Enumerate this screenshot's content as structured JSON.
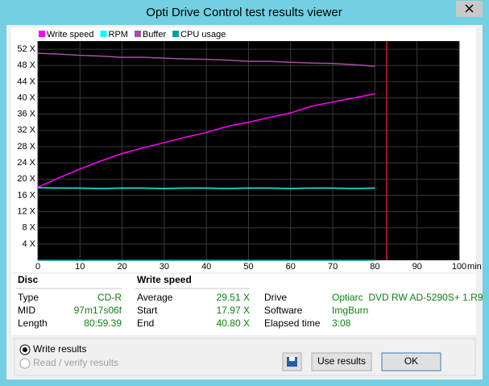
{
  "window": {
    "title": "Opti Drive Control test results viewer"
  },
  "chart_data": {
    "type": "line",
    "x": [
      0,
      5,
      10,
      15,
      20,
      25,
      30,
      35,
      40,
      45,
      50,
      55,
      60,
      65,
      70,
      75,
      80
    ],
    "series": [
      {
        "name": "Write speed",
        "color": "#ff00ff",
        "values": [
          18,
          20.3,
          22.5,
          24.5,
          26.3,
          27.7,
          29,
          30.3,
          31.5,
          33,
          34,
          35.2,
          36.3,
          38,
          39,
          40,
          41
        ]
      },
      {
        "name": "RPM",
        "color": "#00ffff",
        "values": [
          17.9,
          17.8,
          17.8,
          17.7,
          17.8,
          17.8,
          17.7,
          17.8,
          17.8,
          17.7,
          17.8,
          17.8,
          17.7,
          17.8,
          17.8,
          17.7,
          17.8
        ]
      },
      {
        "name": "Buffer",
        "color": "#a550a5",
        "values": [
          51,
          50.8,
          50.5,
          50.3,
          50,
          50,
          49.8,
          49.6,
          49.5,
          49.3,
          49,
          49,
          48.8,
          48.6,
          48.5,
          48.2,
          47.8
        ]
      },
      {
        "name": "CPU usage",
        "color": "#00a0a0",
        "values": [
          0,
          0,
          0,
          0,
          0,
          0,
          0,
          0,
          0,
          0,
          0,
          0,
          0,
          0,
          0,
          0,
          0
        ]
      }
    ],
    "xlim": [
      0,
      100
    ],
    "xticks": [
      0,
      10,
      20,
      30,
      40,
      50,
      60,
      70,
      80,
      90,
      100
    ],
    "xlabel": "min",
    "ylim": [
      0,
      54
    ],
    "yticks": [
      {
        "value": 4,
        "label": "4 X"
      },
      {
        "value": 8,
        "label": "8 X"
      },
      {
        "value": 12,
        "label": "12 X"
      },
      {
        "value": 16,
        "label": "16 X"
      },
      {
        "value": 20,
        "label": "20 X"
      },
      {
        "value": 24,
        "label": "24 X"
      },
      {
        "value": 28,
        "label": "28 X"
      },
      {
        "value": 32,
        "label": "32 X"
      },
      {
        "value": 36,
        "label": "36 X"
      },
      {
        "value": 40,
        "label": "40 X"
      },
      {
        "value": 44,
        "label": "44 X"
      },
      {
        "value": 48,
        "label": "48 X"
      },
      {
        "value": 52,
        "label": "52 X"
      }
    ],
    "grid": true,
    "end_line": 82.8,
    "end_line_color": "#d02020"
  },
  "disc": {
    "title": "Disc",
    "rows": [
      [
        "Type",
        "CD-R"
      ],
      [
        "MID",
        "97m17s06f"
      ],
      [
        "Length",
        "80:59.39"
      ]
    ]
  },
  "write_speed": {
    "title": "Write speed",
    "rows": [
      [
        "Average",
        "29.51 X"
      ],
      [
        "Start",
        "17.97 X"
      ],
      [
        "End",
        "40.80 X"
      ]
    ]
  },
  "drive_info": {
    "rows": [
      [
        "Drive",
        "Optiarc  DVD RW AD-5290S+ 1.R9"
      ],
      [
        "Software",
        "ImgBurn"
      ],
      [
        "Elapsed time",
        "3:08"
      ]
    ]
  },
  "options": {
    "radios": [
      {
        "label": "Write results",
        "checked": true,
        "enabled": true
      },
      {
        "label": "Read / verify results",
        "checked": false,
        "enabled": false
      }
    ]
  },
  "buttons": [
    "Use results",
    "OK"
  ]
}
